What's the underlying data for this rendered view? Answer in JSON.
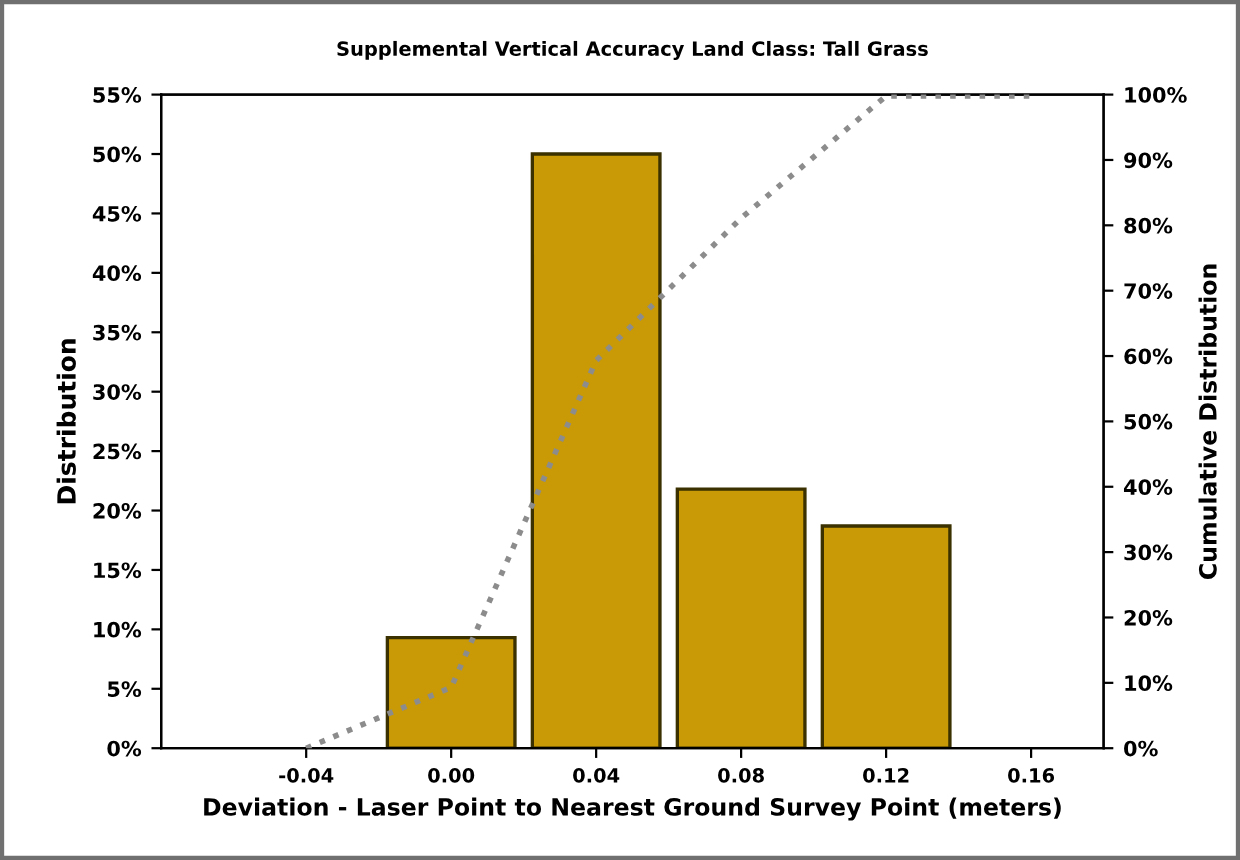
{
  "chart_data": {
    "type": "bar",
    "title": "Supplemental Vertical Accuracy Land Class: Tall Grass",
    "xlabel": "Deviation - Laser Point to Nearest Ground Survey Point (meters)",
    "ylabel": "Distribution",
    "y2label": "Cumulative Distribution",
    "categories": [
      "-0.04",
      "0.00",
      "0.04",
      "0.08",
      "0.12",
      "0.16"
    ],
    "series": [
      {
        "color": "#c99a06",
        "values": [
          null,
          9.3,
          50,
          21.8,
          18.7,
          null
        ]
      },
      {
        "type": "line",
        "axis": "y2",
        "color": "#8c8c8c",
        "line_style": "dotted",
        "values": [
          0,
          9.3,
          59.3,
          81.1,
          99.8,
          99.8
        ]
      }
    ],
    "ylim": [
      0,
      55
    ],
    "yticks": [
      {
        "value": 0,
        "label": "0%"
      },
      {
        "value": 5,
        "label": "5%"
      },
      {
        "value": 10,
        "label": "10%"
      },
      {
        "value": 15,
        "label": "15%"
      },
      {
        "value": 20,
        "label": "20%"
      },
      {
        "value": 25,
        "label": "25%"
      },
      {
        "value": 30,
        "label": "30%"
      },
      {
        "value": 35,
        "label": "35%"
      },
      {
        "value": 40,
        "label": "40%"
      },
      {
        "value": 45,
        "label": "45%"
      },
      {
        "value": 50,
        "label": "50%"
      },
      {
        "value": 55,
        "label": "55%"
      }
    ],
    "y2lim": [
      0,
      100
    ],
    "y2ticks": [
      {
        "value": 0,
        "label": "0%"
      },
      {
        "value": 10,
        "label": "10%"
      },
      {
        "value": 20,
        "label": "20%"
      },
      {
        "value": 30,
        "label": "30%"
      },
      {
        "value": 40,
        "label": "40%"
      },
      {
        "value": 50,
        "label": "50%"
      },
      {
        "value": 60,
        "label": "60%"
      },
      {
        "value": 70,
        "label": "70%"
      },
      {
        "value": 80,
        "label": "80%"
      },
      {
        "value": 90,
        "label": "90%"
      },
      {
        "value": 100,
        "label": "100%"
      }
    ],
    "grid": false,
    "legend": false
  }
}
